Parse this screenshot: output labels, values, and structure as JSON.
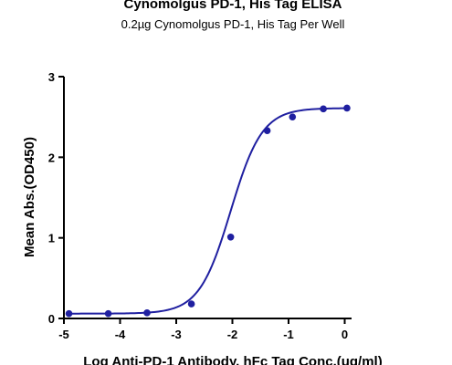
{
  "chart_data": {
    "type": "scatter",
    "title": "Cynomolgus PD-1, His Tag ELISA",
    "subtitle": "0.2µg Cynomolgus PD-1, His Tag Per Well",
    "xlabel": "Log Anti-PD-1 Antibody, hFc Tag Conc.(ug/ml)",
    "ylabel": "Mean Abs.(OD450)",
    "xlim": [
      -5,
      0.3
    ],
    "ylim": [
      0,
      3
    ],
    "xticks": [
      -5,
      -4,
      -3,
      -2,
      -1,
      0
    ],
    "yticks": [
      0,
      1,
      2,
      3
    ],
    "grid": false,
    "legend": "none",
    "series": [
      {
        "x": [
          -4.91,
          -4.21,
          -3.52,
          -2.73,
          -2.03,
          -1.38,
          -0.93,
          -0.38,
          0.04
        ],
        "y": [
          0.06,
          0.06,
          0.07,
          0.18,
          1.01,
          2.33,
          2.5,
          2.6,
          2.61
        ],
        "color": "#1f1fa0",
        "fit": {
          "model": "4PL",
          "bottom": 0.06,
          "top": 2.61,
          "log_ec50": -2.03,
          "hill": 1.55
        }
      }
    ]
  }
}
